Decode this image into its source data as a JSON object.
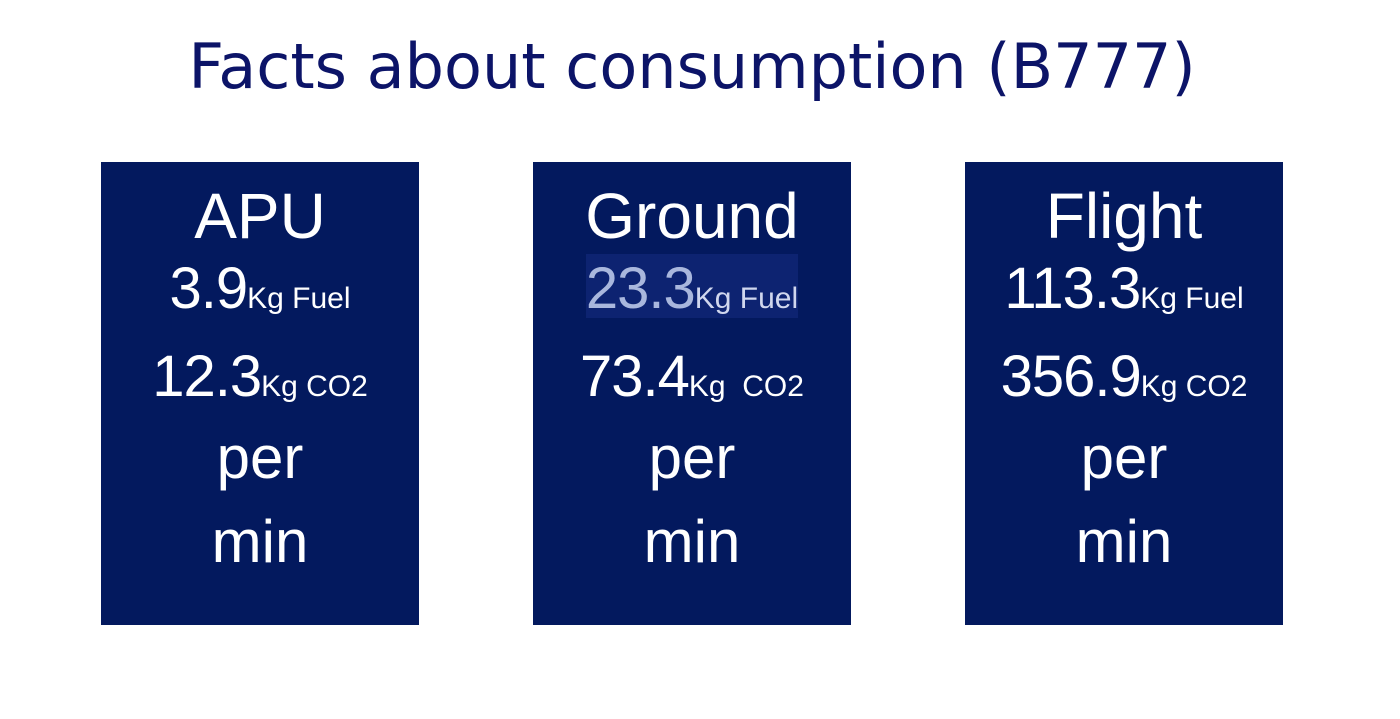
{
  "title": "Facts about consumption (B777)",
  "cards": [
    {
      "heading": "APU",
      "fuel": {
        "value": "3.9",
        "unit": "Kg Fuel"
      },
      "co2": {
        "value": "12.3",
        "unit": "Kg CO2"
      },
      "per": "per",
      "min": "min"
    },
    {
      "heading": "Ground",
      "fuel": {
        "value": "23.3",
        "unit": "Kg Fuel"
      },
      "co2": {
        "value": "73.4",
        "unit": "Kg  CO2"
      },
      "per": "per",
      "min": "min"
    },
    {
      "heading": "Flight",
      "fuel": {
        "value": "113.3",
        "unit": "Kg Fuel"
      },
      "co2": {
        "value": "356.9",
        "unit": "Kg CO2"
      },
      "per": "per",
      "min": "min"
    }
  ],
  "colors": {
    "title": "#0c1468",
    "card_background": "#03195e",
    "card_text": "#ffffff",
    "highlighted_value": "#a9b7dd"
  }
}
